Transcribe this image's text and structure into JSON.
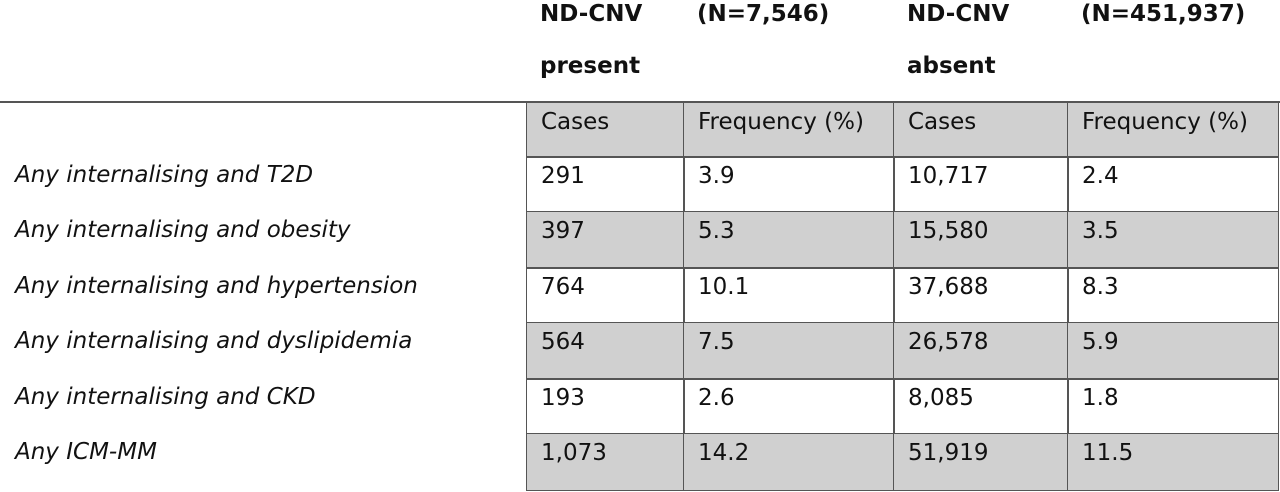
{
  "header": {
    "groups": [
      {
        "title": "ND-CNV present",
        "n": "(N=7,546)"
      },
      {
        "title": "ND-CNV absent",
        "n": "(N=451,937)"
      }
    ]
  },
  "table": {
    "subheader": [
      "Cases",
      "Frequency (%)",
      "Cases",
      "Frequency (%)"
    ],
    "rows": [
      {
        "label": "Any internalising and T2D",
        "cells": [
          "291",
          "3.9",
          "10,717",
          "2.4"
        ]
      },
      {
        "label": "Any internalising and obesity",
        "cells": [
          "397",
          "5.3",
          "15,580",
          "3.5"
        ]
      },
      {
        "label": "Any internalising and hypertension",
        "cells": [
          "764",
          "10.1",
          "37,688",
          "8.3"
        ]
      },
      {
        "label": "Any internalising and dyslipidemia",
        "cells": [
          "564",
          "7.5",
          "26,578",
          "5.9"
        ]
      },
      {
        "label": "Any internalising and CKD",
        "cells": [
          "193",
          "2.6",
          "8,085",
          "1.8"
        ]
      },
      {
        "label": "Any ICM-MM",
        "cells": [
          "1,073",
          "14.2",
          "51,919",
          "11.5"
        ]
      }
    ]
  }
}
